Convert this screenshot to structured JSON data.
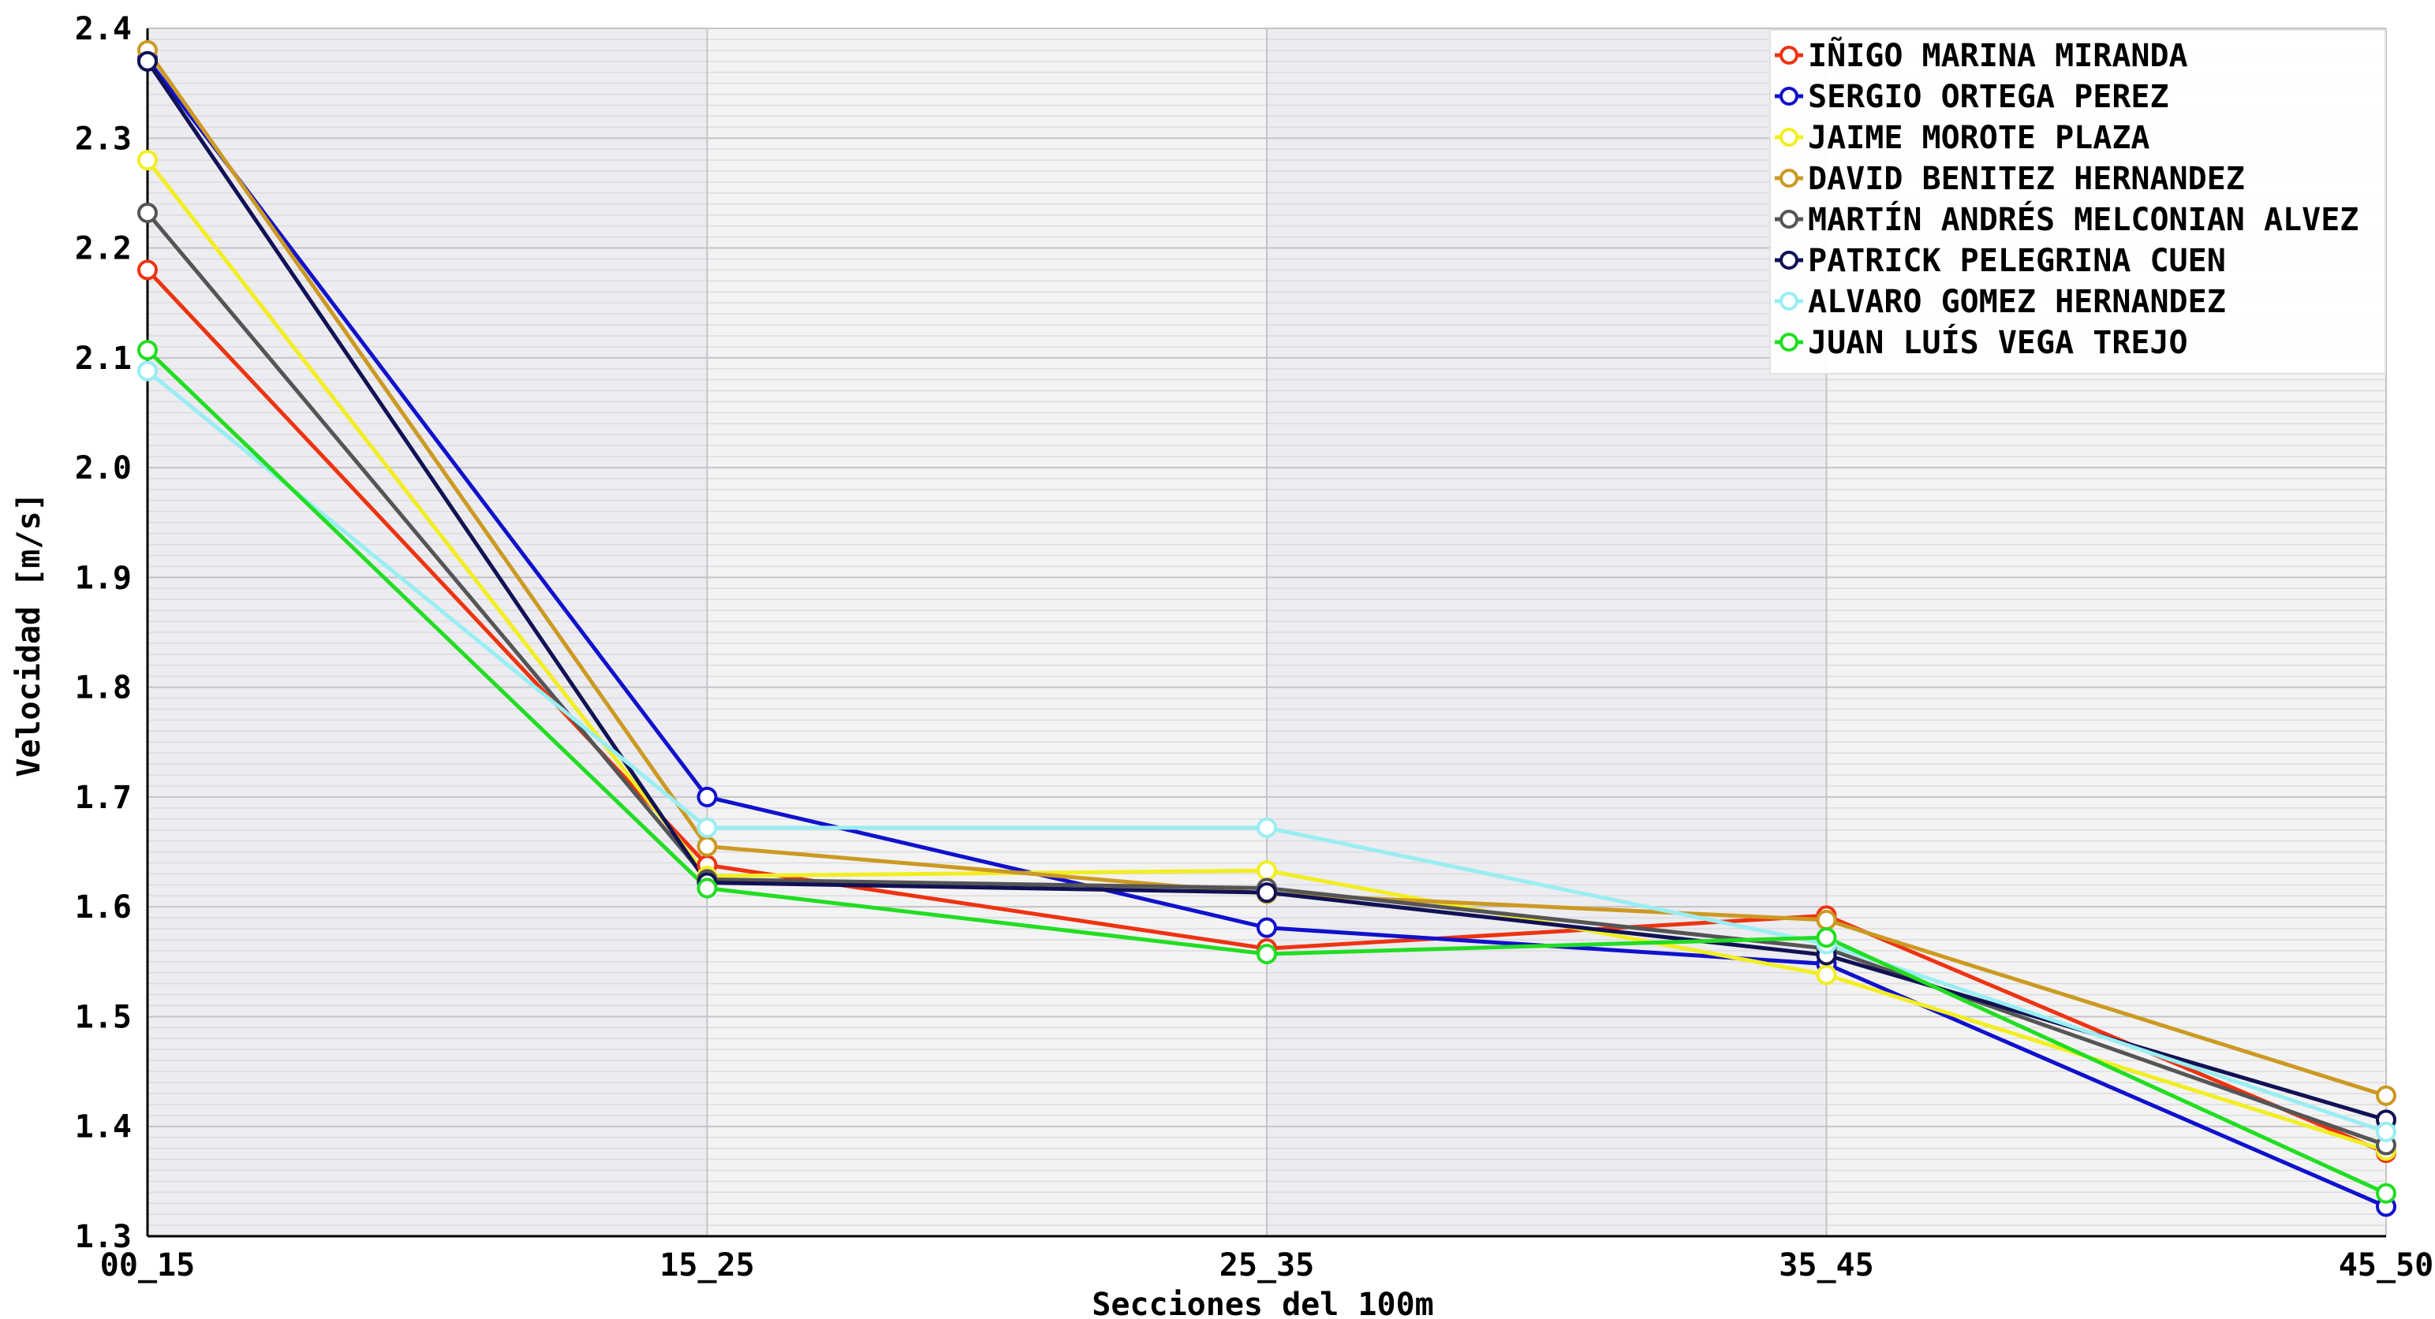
{
  "chart_data": {
    "type": "line",
    "title": "",
    "xlabel": "Secciones del 100m",
    "ylabel": "Velocidad [m/s]",
    "categories": [
      "00_15",
      "15_25",
      "25_35",
      "35_45",
      "45_50"
    ],
    "ylim": [
      1.3,
      2.4
    ],
    "yticks": [
      "1.3",
      "1.4",
      "1.5",
      "1.6",
      "1.7",
      "1.8",
      "1.9",
      "2.0",
      "2.1",
      "2.2",
      "2.3",
      "2.4"
    ],
    "grid": true,
    "legend_position": "top-right",
    "series": [
      {
        "name": "IÑIGO MARINA MIRANDA",
        "color": "#ee3311",
        "values": [
          2.18,
          1.638,
          1.562,
          1.592,
          1.376
        ]
      },
      {
        "name": "SERGIO ORTEGA PEREZ",
        "color": "#1111cc",
        "values": [
          2.372,
          1.7,
          1.581,
          1.548,
          1.327
        ]
      },
      {
        "name": "JAIME MOROTE PLAZA",
        "color": "#f2ee22",
        "values": [
          2.28,
          1.628,
          1.633,
          1.538,
          1.378
        ]
      },
      {
        "name": "DAVID BENITEZ HERNANDEZ",
        "color": "#cc9922",
        "values": [
          2.38,
          1.655,
          1.612,
          1.588,
          1.428
        ]
      },
      {
        "name": "MARTÍN ANDRÉS MELCONIAN ALVEZ",
        "color": "#555555",
        "values": [
          2.232,
          1.625,
          1.617,
          1.562,
          1.383
        ]
      },
      {
        "name": "PATRICK PELEGRINA CUEN",
        "color": "#111155",
        "values": [
          2.37,
          1.622,
          1.613,
          1.556,
          1.406
        ]
      },
      {
        "name": "ALVARO GOMEZ HERNANDEZ",
        "color": "#99eef2",
        "values": [
          2.088,
          1.672,
          1.672,
          1.566,
          1.395
        ]
      },
      {
        "name": "JUAN LUÍS VEGA TREJO",
        "color": "#22dd22",
        "values": [
          2.107,
          1.617,
          1.557,
          1.572,
          1.339
        ]
      }
    ]
  }
}
